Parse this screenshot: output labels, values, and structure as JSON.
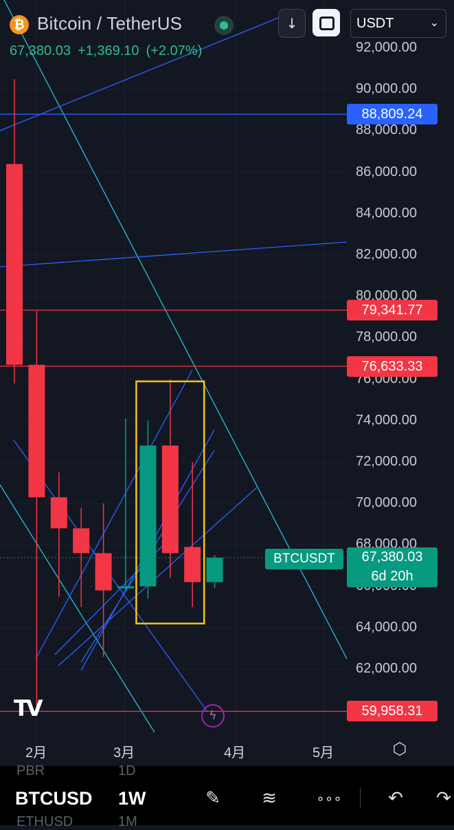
{
  "header": {
    "coin_icon": "bitcoin-icon",
    "coin_glyph": "₿",
    "title": "Bitcoin / TetherUS",
    "last_price": "67,380.03",
    "change": "+1,369.10",
    "change_pct": "(+2.07%)",
    "download_glyph": "↓",
    "currency_select": "USDT",
    "chevron_glyph": "⌄"
  },
  "price_axis": [
    "92,000.00",
    "90,000.00",
    "88,000.00",
    "86,000.00",
    "84,000.00",
    "82,000.00",
    "80,000.00",
    "78,000.00",
    "76,000.00",
    "74,000.00",
    "72,000.00",
    "70,000.00",
    "68,000.00",
    "66,000.00",
    "64,000.00",
    "62,000.00"
  ],
  "level_tags": [
    {
      "value": 88809.24,
      "text": "88,809.24",
      "color": "#2962ff"
    },
    {
      "value": 79341.77,
      "text": "79,341.77",
      "color": "#f23645"
    },
    {
      "value": 76633.33,
      "text": "76,633.33",
      "color": "#f23645"
    },
    {
      "value": 59958.31,
      "text": "59,958.31",
      "color": "#f23645"
    }
  ],
  "current": {
    "symbol": "BTCUSDT",
    "price": "67,380.03",
    "countdown": "6d 20h",
    "color": "#089981"
  },
  "time_axis": [
    "2月",
    "3月",
    "4月",
    "5月"
  ],
  "logo_text": "TV",
  "bolt_glyph": "ϟ",
  "settings_glyph": "⬡",
  "colors": {
    "up": "#089981",
    "down": "#f23645",
    "blue_line": "#2962ff",
    "cyan_line": "#22c1d6",
    "box": "#f5c518",
    "background": "#131722"
  },
  "chart_data": {
    "type": "candlestick",
    "interval": "1W",
    "y_axis_range": [
      58200,
      93500
    ],
    "candles": [
      {
        "open": 86400,
        "high": 90500,
        "low": 75800,
        "close": 76700
      },
      {
        "open": 76700,
        "high": 79300,
        "low": 59900,
        "close": 70300
      },
      {
        "open": 70300,
        "high": 71500,
        "low": 65500,
        "close": 68800
      },
      {
        "open": 68800,
        "high": 69800,
        "low": 65000,
        "close": 67600
      },
      {
        "open": 67600,
        "high": 70000,
        "low": 62600,
        "close": 65800
      },
      {
        "open": 66000,
        "high": 74100,
        "low": 65800,
        "close": 66000
      },
      {
        "open": 66000,
        "high": 74000,
        "low": 65400,
        "close": 72800
      },
      {
        "open": 72800,
        "high": 76000,
        "low": 66400,
        "close": 67600
      },
      {
        "open": 67900,
        "high": 72000,
        "low": 65000,
        "close": 66200
      },
      {
        "open": 66200,
        "high": 67500,
        "low": 65900,
        "close": 67380
      }
    ],
    "horizontal_levels": [
      88809.24,
      79341.77,
      76633.33,
      59958.31
    ],
    "highlight_box": {
      "from_candle": 6,
      "to_candle": 8,
      "price_range": [
        64200,
        75900
      ]
    }
  },
  "bottom_bar": {
    "ghost_symbols": [
      "PBR",
      "ETHUSD"
    ],
    "ghost_intervals": [
      "1D",
      "1M"
    ],
    "symbol": "BTCUSD",
    "interval": "1W",
    "draw_glyph": "✎",
    "trend_glyph": "≋",
    "more_glyph": "∘∘∘",
    "undo_glyph": "↶",
    "redo_glyph": "↷"
  }
}
